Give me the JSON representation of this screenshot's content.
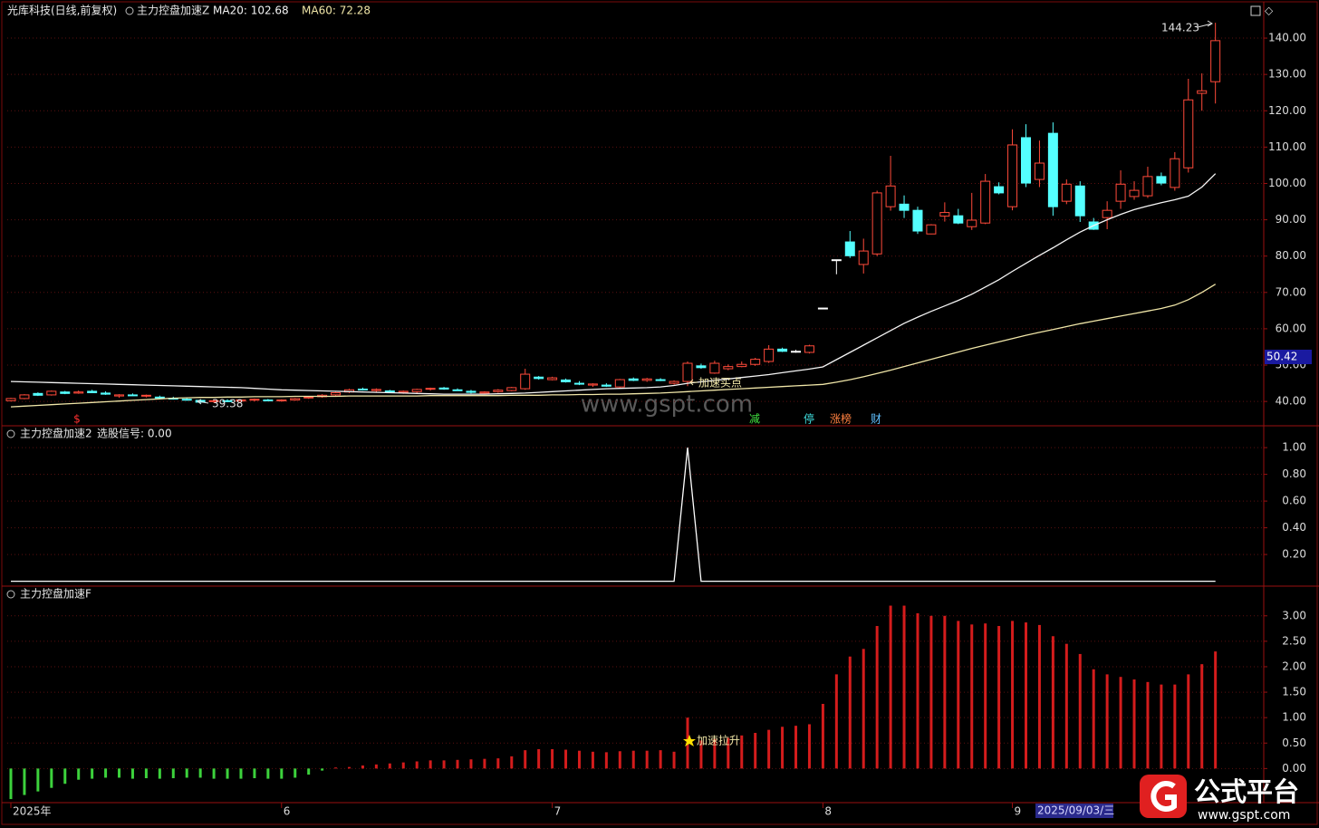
{
  "header": {
    "watermark": "www.gspt.com",
    "logo_text": "公式平台",
    "logo_url": "www.gspt.com"
  },
  "chart_data": [
    {
      "type": "candlestick",
      "title": "光库科技(日线,前复权)",
      "indicator": "主力控盘加速Z",
      "up_color": "#ff4a3a",
      "down_color": "#54ffff",
      "flat_color": "#ffffff",
      "categories": [
        "2025年",
        null,
        null,
        null,
        null,
        null,
        null,
        null,
        null,
        null,
        null,
        null,
        null,
        null,
        null,
        null,
        null,
        null,
        null,
        null,
        "6",
        null,
        null,
        null,
        null,
        null,
        null,
        null,
        null,
        null,
        null,
        null,
        null,
        null,
        null,
        null,
        null,
        null,
        null,
        null,
        "7",
        null,
        null,
        null,
        null,
        null,
        null,
        null,
        null,
        null,
        null,
        null,
        null,
        null,
        null,
        null,
        null,
        null,
        null,
        null,
        "8",
        null,
        null,
        null,
        null,
        null,
        null,
        null,
        null,
        null,
        null,
        null,
        null,
        null,
        "9",
        null,
        null,
        null,
        null,
        null,
        null,
        null,
        null,
        null,
        null,
        null,
        null,
        null,
        null,
        null
      ],
      "open": [
        40.2,
        40.8,
        42.2,
        41.8,
        42.6,
        42.3,
        42.8,
        42.3,
        41.5,
        41.8,
        41.5,
        41.2,
        40.9,
        40.6,
        40.3,
        40.0,
        40.2,
        40.1,
        40.5,
        40.4,
        40.3,
        40.4,
        41.0,
        41.3,
        41.8,
        42.6,
        43.4,
        43.0,
        42.9,
        42.5,
        42.7,
        43.4,
        43.7,
        43.2,
        42.8,
        42.3,
        42.7,
        43.0,
        43.5,
        46.7,
        46.0,
        45.9,
        45.0,
        44.5,
        44.5,
        44.0,
        46.2,
        45.8,
        46.0,
        45.0,
        45.5,
        49.8,
        47.8,
        49.0,
        49.6,
        50.2,
        51.0,
        54.4,
        53.8,
        53.5,
        65.7,
        79,
        83.9,
        77.7,
        80.6,
        93.6,
        94.3,
        92.6,
        86.1,
        91.0,
        91.1,
        88.1,
        89.1,
        99.1,
        93.6,
        112.6,
        101.1,
        113.8,
        95.1,
        99.3,
        89.4,
        90.6,
        95.1,
        96.4,
        96.6,
        101.9,
        98.9,
        104.3,
        124.8,
        128.0
      ],
      "high": [
        41.0,
        42.0,
        42.5,
        43.0,
        42.9,
        43.0,
        43.2,
        42.8,
        42.0,
        42.2,
        41.9,
        41.6,
        41.3,
        41.0,
        40.6,
        40.5,
        40.6,
        40.5,
        40.8,
        40.7,
        40.6,
        41.0,
        41.5,
        42.0,
        42.6,
        43.5,
        43.8,
        43.6,
        43.2,
        43.0,
        43.5,
        43.8,
        44.0,
        43.6,
        43.2,
        42.8,
        43.4,
        44.0,
        49.0,
        47.0,
        46.8,
        46.3,
        45.6,
        45.0,
        45.0,
        46.2,
        46.6,
        46.5,
        46.4,
        45.8,
        51.0,
        50.4,
        51.2,
        50.2,
        51.0,
        52.0,
        55.5,
        54.8,
        54.2,
        55.6,
        65.7,
        79,
        86.9,
        84.8,
        98,
        107.6,
        96.7,
        93.6,
        88.8,
        94.8,
        93.0,
        97.4,
        102.6,
        100.3,
        114.9,
        116.3,
        111.8,
        116.8,
        101.1,
        100.6,
        90.5,
        95.1,
        103.6,
        100.6,
        104.6,
        103.0,
        108.6,
        128.8,
        130.3,
        144.23
      ],
      "low": [
        40.0,
        40.6,
        41.5,
        41.6,
        42.0,
        42.1,
        42.3,
        41.8,
        41.0,
        41.5,
        41.1,
        40.8,
        40.5,
        40.2,
        39.38,
        39.6,
        39.8,
        39.8,
        40.0,
        40.1,
        39.9,
        40.2,
        40.7,
        41.0,
        41.5,
        42.3,
        43.0,
        42.6,
        42.4,
        42.1,
        42.3,
        43.0,
        43.2,
        42.9,
        42.2,
        42.0,
        42.4,
        42.8,
        43.2,
        46.0,
        45.8,
        45.2,
        44.5,
        44.0,
        44.0,
        43.8,
        45.6,
        45.4,
        45.6,
        44.6,
        44.2,
        49.0,
        47.6,
        48.6,
        49.4,
        49.8,
        50.6,
        53.6,
        53.4,
        53.2,
        65.7,
        75,
        79.5,
        75.2,
        80,
        92.5,
        90.5,
        86.1,
        86.0,
        89.5,
        88.8,
        87.2,
        88.8,
        97.0,
        92.6,
        99.0,
        99.0,
        91.1,
        94.3,
        89.4,
        87.2,
        87.4,
        93.0,
        95.5,
        96.0,
        99.5,
        98.0,
        103.0,
        120.0,
        122.0
      ],
      "close": [
        40.8,
        41.8,
        41.7,
        42.8,
        42.2,
        42.6,
        42.4,
        42.0,
        41.8,
        41.6,
        41.7,
        41.0,
        40.7,
        40.4,
        39.8,
        40.2,
        40.0,
        40.4,
        40.6,
        40.3,
        40.4,
        40.8,
        41.2,
        41.7,
        42.4,
        43.2,
        43.2,
        43.3,
        42.6,
        42.8,
        43.3,
        43.6,
        43.4,
        43.1,
        42.5,
        42.6,
        43.1,
        43.8,
        47.5,
        46.3,
        46.5,
        45.4,
        44.8,
        44.8,
        44.2,
        46.0,
        45.8,
        46.2,
        45.8,
        45.5,
        50.5,
        49.3,
        50.5,
        49.6,
        50.2,
        51.6,
        54.4,
        53.8,
        53.8,
        55.3,
        65.7,
        79,
        80.1,
        81.4,
        97.4,
        99.3,
        92.6,
        86.9,
        88.6,
        92.0,
        89.1,
        89.9,
        100.6,
        97.4,
        110.6,
        100.1,
        105.6,
        93.6,
        99.8,
        91.1,
        87.4,
        92.6,
        99.8,
        98.1,
        101.9,
        100.1,
        106.8,
        123.0,
        125.5,
        139.3
      ],
      "series": [
        {
          "name": "MA20: 102.68",
          "color": "#f4f4f4",
          "values": [
            45.5,
            45.4,
            45.3,
            45.2,
            45.1,
            45.0,
            44.9,
            44.8,
            44.7,
            44.6,
            44.5,
            44.4,
            44.3,
            44.2,
            44.1,
            44.0,
            43.9,
            43.8,
            43.6,
            43.4,
            43.2,
            43.1,
            43.0,
            42.9,
            42.8,
            42.7,
            42.6,
            42.5,
            42.4,
            42.3,
            42.2,
            42.1,
            42.0,
            42.0,
            42.0,
            42.0,
            42.1,
            42.2,
            42.3,
            42.5,
            42.7,
            42.9,
            43.1,
            43.3,
            43.5,
            43.6,
            43.7,
            43.8,
            44.0,
            44.4,
            45.0,
            45.4,
            45.8,
            46.2,
            46.6,
            47.0,
            47.4,
            47.9,
            48.4,
            48.9,
            49.5,
            51.5,
            53.5,
            55.5,
            57.5,
            59.5,
            61.5,
            63.2,
            64.8,
            66.3,
            67.8,
            69.5,
            71.5,
            73.5,
            75.8,
            78.0,
            80.2,
            82.3,
            84.5,
            86.6,
            88.4,
            90.0,
            91.5,
            92.8,
            93.8,
            94.7,
            95.5,
            96.5,
            99.0,
            102.68
          ]
        },
        {
          "name": "MA60: 72.28",
          "color": "#f0e6a8",
          "values": [
            38.5,
            38.7,
            38.9,
            39.1,
            39.3,
            39.5,
            39.7,
            39.9,
            40.1,
            40.3,
            40.5,
            40.7,
            40.9,
            41.0,
            41.1,
            41.1,
            41.2,
            41.2,
            41.3,
            41.3,
            41.3,
            41.4,
            41.4,
            41.4,
            41.4,
            41.5,
            41.5,
            41.5,
            41.5,
            41.5,
            41.5,
            41.6,
            41.6,
            41.6,
            41.6,
            41.6,
            41.6,
            41.7,
            41.7,
            41.7,
            41.8,
            41.8,
            41.9,
            41.9,
            42.0,
            42.0,
            42.1,
            42.2,
            42.3,
            42.5,
            42.7,
            42.9,
            43.1,
            43.3,
            43.5,
            43.7,
            43.9,
            44.1,
            44.3,
            44.5,
            44.7,
            45.3,
            46.0,
            46.8,
            47.7,
            48.6,
            49.6,
            50.6,
            51.6,
            52.6,
            53.6,
            54.6,
            55.5,
            56.4,
            57.3,
            58.2,
            59.0,
            59.8,
            60.6,
            61.4,
            62.1,
            62.8,
            63.5,
            64.2,
            64.9,
            65.6,
            66.5,
            68.0,
            70.0,
            72.28
          ]
        }
      ],
      "ylim": [
        33.8,
        145.5
      ],
      "yticks": [
        {
          "value": 40,
          "label": "40.00"
        },
        {
          "value": 50,
          "label": "50.00"
        },
        {
          "value": 60,
          "label": "60.00"
        },
        {
          "value": 70,
          "label": "70.00"
        },
        {
          "value": 80,
          "label": "80.00"
        },
        {
          "value": 90,
          "label": "90.00"
        },
        {
          "value": 100,
          "label": "100.00"
        },
        {
          "value": 110,
          "label": "110.00"
        },
        {
          "value": 120,
          "label": "120.00"
        },
        {
          "value": 130,
          "label": "130.00"
        },
        {
          "value": 140,
          "label": "140.00"
        }
      ],
      "grid": true,
      "annotations": [
        "144.23",
        "39.38",
        "加速买点"
      ],
      "event_markers": [
        "$",
        "减",
        "停",
        "涨榜",
        "财"
      ],
      "price_cursor": "50.42",
      "date_cursor": "2025/09/03/三"
    },
    {
      "type": "line",
      "title": "主力控盘加速2",
      "series": [
        {
          "name": "选股信号: 0.00",
          "color": "#ffffff",
          "values": [
            0,
            0,
            0,
            0,
            0,
            0,
            0,
            0,
            0,
            0,
            0,
            0,
            0,
            0,
            0,
            0,
            0,
            0,
            0,
            0,
            0,
            0,
            0,
            0,
            0,
            0,
            0,
            0,
            0,
            0,
            0,
            0,
            0,
            0,
            0,
            0,
            0,
            0,
            0,
            0,
            0,
            0,
            0,
            0,
            0,
            0,
            0,
            0,
            0,
            0,
            1,
            0,
            0,
            0,
            0,
            0,
            0,
            0,
            0,
            0,
            0,
            0,
            0,
            0,
            0,
            0,
            0,
            0,
            0,
            0,
            0,
            0,
            0,
            0,
            0,
            0,
            0,
            0,
            0,
            0,
            0,
            0,
            0,
            0,
            0,
            0,
            0,
            0,
            0,
            0
          ]
        }
      ],
      "ylim": [
        -0.03,
        1.15
      ],
      "yticks": [
        {
          "value": 0.2,
          "label": "0.20"
        },
        {
          "value": 0.4,
          "label": "0.40"
        },
        {
          "value": 0.6,
          "label": "0.60"
        },
        {
          "value": 0.8,
          "label": "0.80"
        },
        {
          "value": 1,
          "label": "1.00"
        }
      ],
      "grid": true
    },
    {
      "type": "bar",
      "title": "主力控盘加速F",
      "up_color": "#d41c1c",
      "down_color": "#3cd23c",
      "values": [
        -0.6,
        -0.52,
        -0.45,
        -0.38,
        -0.3,
        -0.22,
        -0.2,
        -0.18,
        -0.18,
        -0.2,
        -0.19,
        -0.2,
        -0.19,
        -0.18,
        -0.18,
        -0.2,
        -0.2,
        -0.2,
        -0.19,
        -0.2,
        -0.2,
        -0.18,
        -0.12,
        -0.04,
        0.02,
        0.03,
        0.06,
        0.08,
        0.1,
        0.12,
        0.14,
        0.16,
        0.16,
        0.17,
        0.18,
        0.19,
        0.2,
        0.24,
        0.36,
        0.38,
        0.38,
        0.37,
        0.35,
        0.33,
        0.32,
        0.34,
        0.35,
        0.35,
        0.36,
        0.33,
        1.0,
        0.55,
        0.58,
        0.6,
        0.65,
        0.7,
        0.76,
        0.82,
        0.84,
        0.87,
        1.27,
        1.85,
        2.2,
        2.35,
        2.8,
        3.2,
        3.2,
        3.05,
        3.0,
        3.0,
        2.9,
        2.83,
        2.85,
        2.8,
        2.9,
        2.87,
        2.82,
        2.6,
        2.45,
        2.25,
        1.95,
        1.85,
        1.8,
        1.75,
        1.7,
        1.65,
        1.65,
        1.85,
        2.05,
        2.3
      ],
      "ylim": [
        -0.67,
        3.53
      ],
      "yticks": [
        {
          "value": 0,
          "label": "0.00"
        },
        {
          "value": 0.5,
          "label": "0.50"
        },
        {
          "value": 1,
          "label": "1.00"
        },
        {
          "value": 1.5,
          "label": "1.50"
        },
        {
          "value": 2,
          "label": "2.00"
        },
        {
          "value": 2.5,
          "label": "2.50"
        },
        {
          "value": 3,
          "label": "3.00"
        }
      ],
      "grid": true,
      "annotations": [
        "加速拉升"
      ]
    }
  ]
}
